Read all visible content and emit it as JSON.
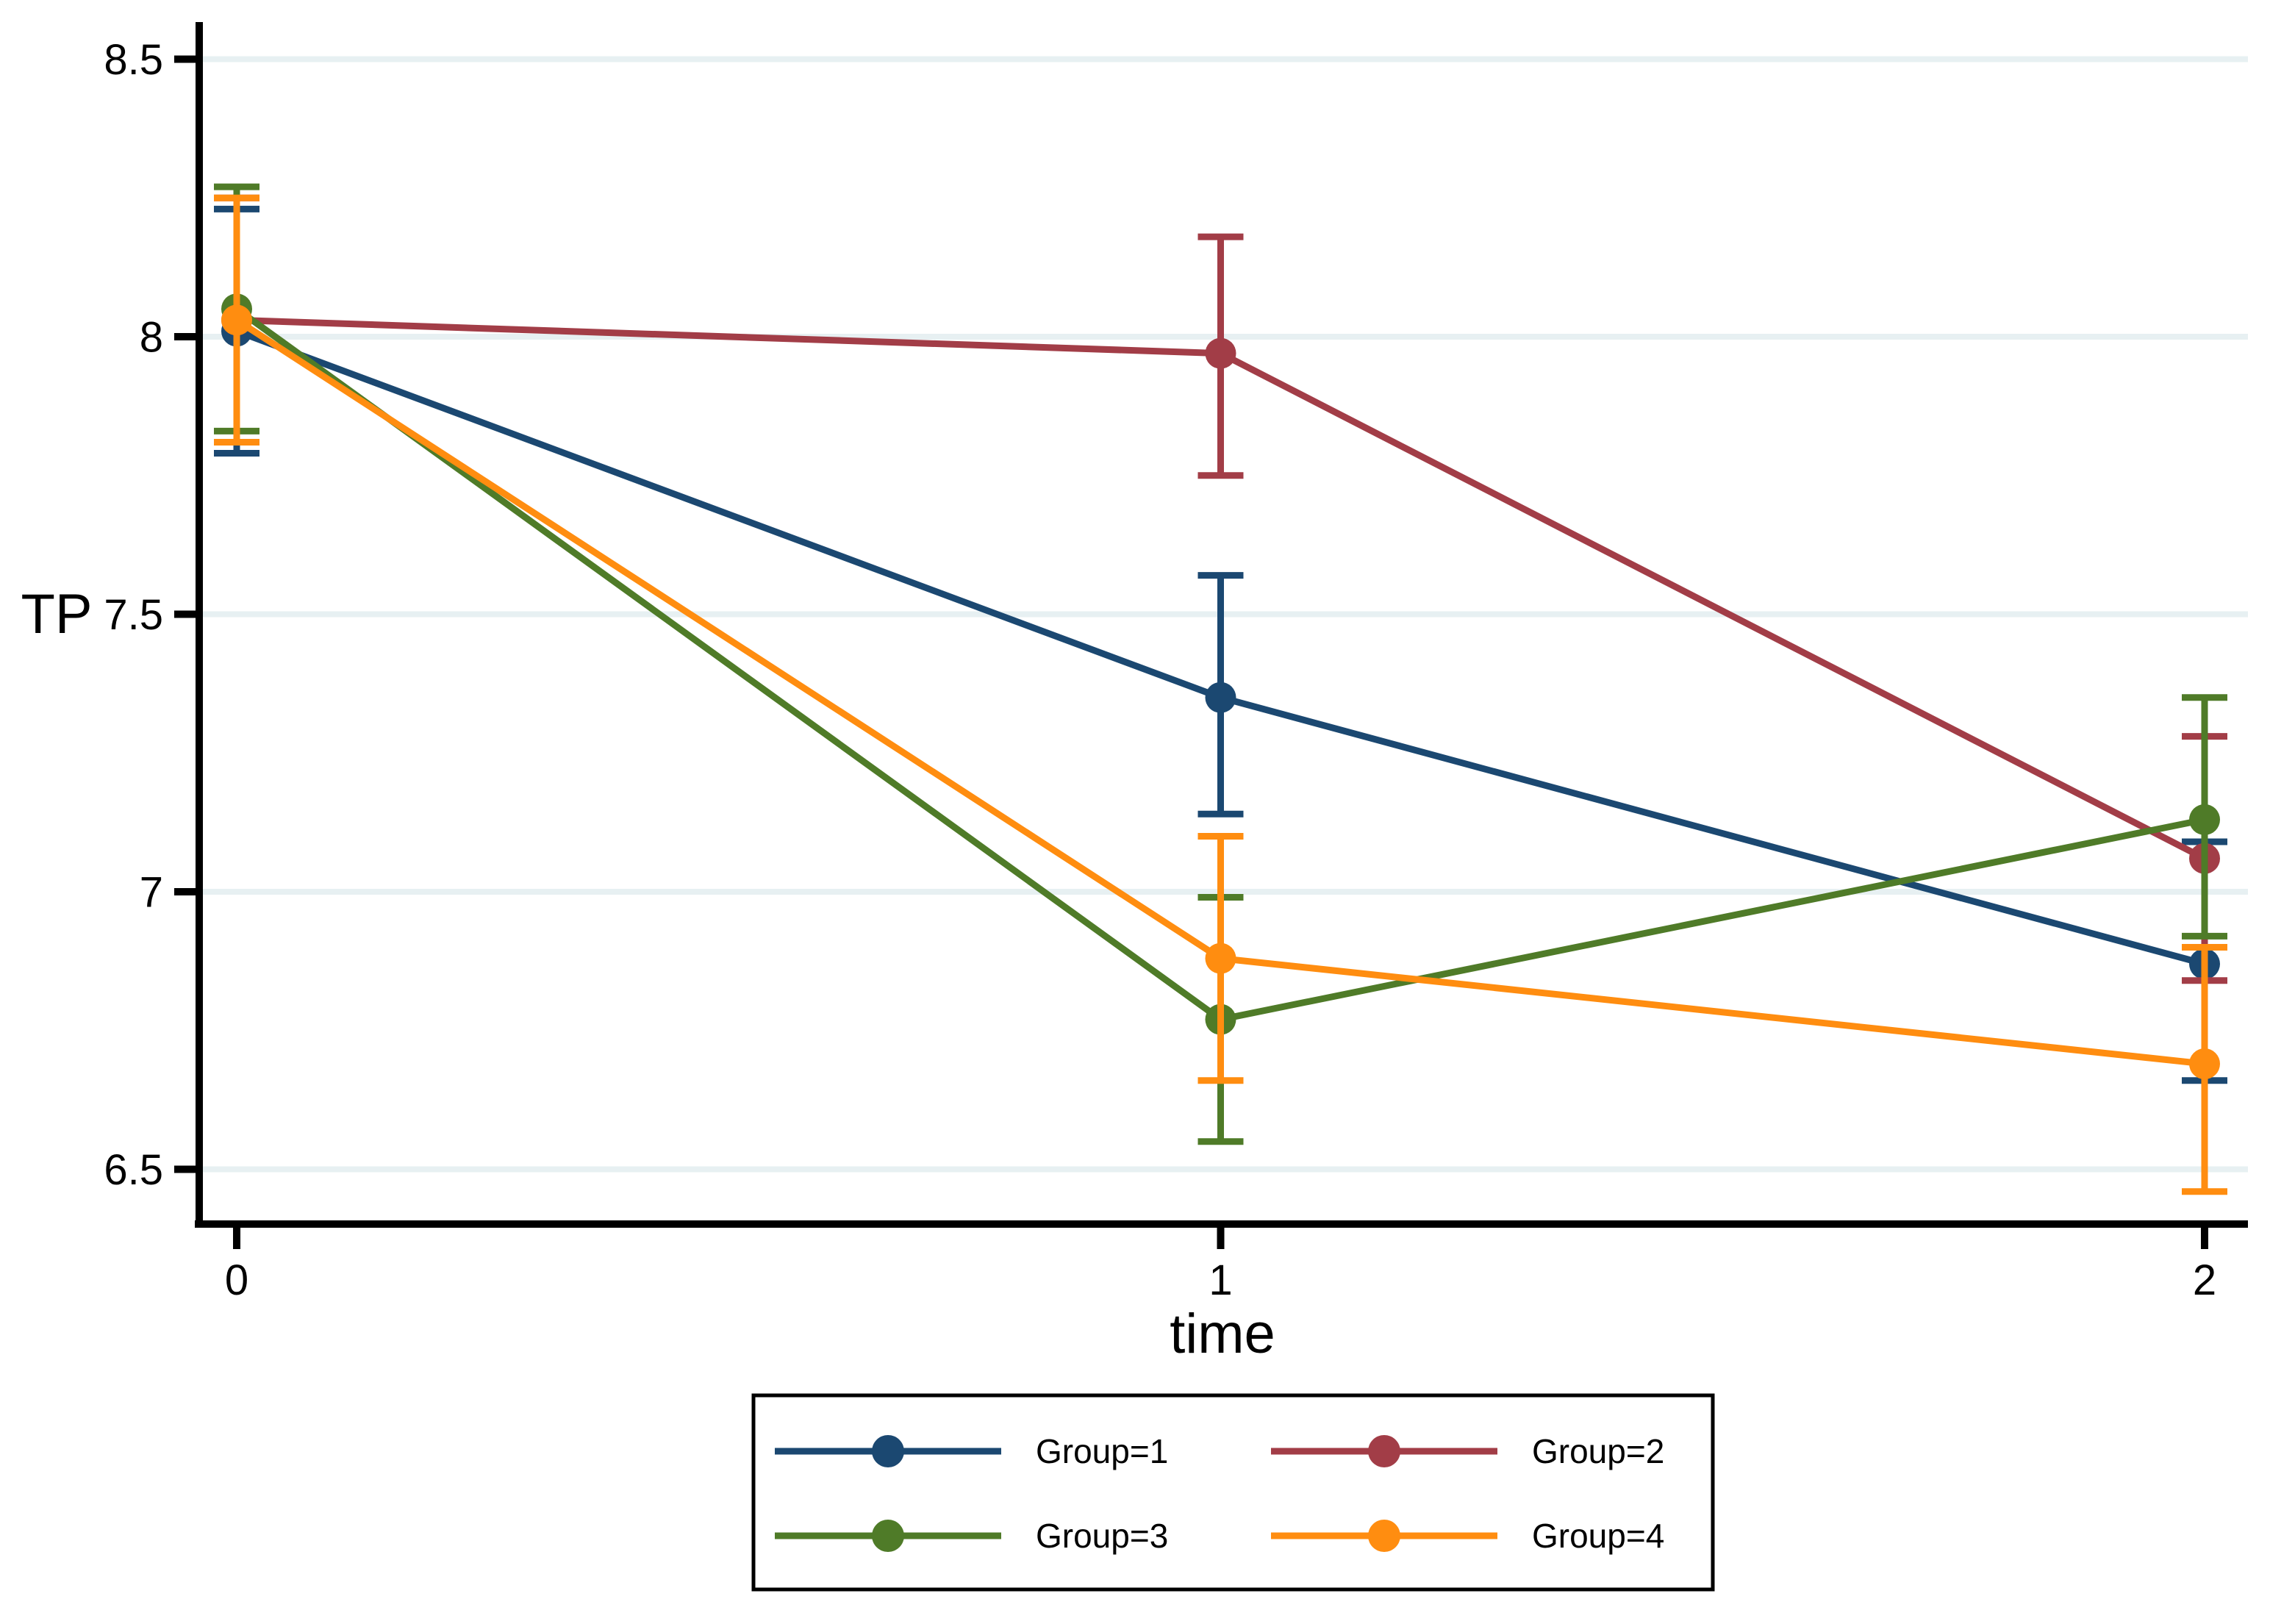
{
  "chart_data": {
    "type": "line",
    "title": "",
    "xlabel": "time",
    "ylabel": "TP",
    "x": [
      0,
      1,
      2
    ],
    "x_tick_labels": [
      "0",
      "1",
      "2"
    ],
    "y_ticks": [
      6.5,
      7,
      7.5,
      8,
      8.5
    ],
    "y_tick_labels": [
      "6.5",
      "7",
      "7.5",
      "8",
      "8.5"
    ],
    "ylim": [
      6.4,
      8.57
    ],
    "xlim": [
      -0.04,
      2.05
    ],
    "grid": true,
    "error_bars": true,
    "legend_position": "bottom",
    "legend_columns": 2,
    "series": [
      {
        "name": "Group=1",
        "color": "#1b4871",
        "values": [
          8.01,
          7.35,
          6.87
        ],
        "ci_low": [
          7.79,
          7.14,
          6.66
        ],
        "ci_high": [
          8.23,
          7.57,
          7.09
        ]
      },
      {
        "name": "Group=2",
        "color": "#a23d47",
        "values": [
          8.03,
          7.97,
          7.06
        ],
        "ci_low": [
          7.81,
          7.75,
          6.84
        ],
        "ci_high": [
          8.25,
          8.18,
          7.28
        ]
      },
      {
        "name": "Group=3",
        "color": "#4f7b28",
        "values": [
          8.05,
          6.77,
          7.13
        ],
        "ci_low": [
          7.83,
          6.55,
          6.92
        ],
        "ci_high": [
          8.27,
          6.99,
          7.35
        ]
      },
      {
        "name": "Group=4",
        "color": "#ff8d10",
        "values": [
          8.03,
          6.88,
          6.69
        ],
        "ci_low": [
          7.81,
          6.66,
          6.46
        ],
        "ci_high": [
          8.25,
          7.1,
          6.9
        ]
      }
    ],
    "colors": {
      "axis": "#000000",
      "grid": "#e7f0f2",
      "background": "#ffffff",
      "legend_border": "#000000",
      "text": "#000000"
    }
  }
}
